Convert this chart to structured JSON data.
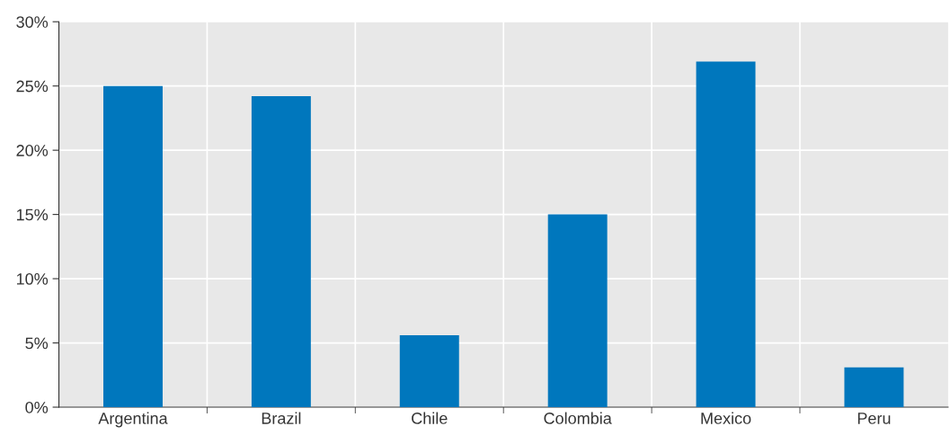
{
  "chart_data": {
    "type": "bar",
    "categories": [
      "Argentina",
      "Brazil",
      "Chile",
      "Colombia",
      "Mexico",
      "Peru"
    ],
    "values": [
      25,
      24.2,
      5.6,
      15,
      26.9,
      3.1
    ],
    "color": "#0077bd",
    "ylim": [
      0,
      30
    ],
    "yticks": [
      {
        "value": 0,
        "label": "0%"
      },
      {
        "value": 5,
        "label": "5%"
      },
      {
        "value": 10,
        "label": "10%"
      },
      {
        "value": 15,
        "label": "15%"
      },
      {
        "value": 20,
        "label": "20%"
      },
      {
        "value": 25,
        "label": "25%"
      },
      {
        "value": 30,
        "label": "30%"
      }
    ],
    "grid": true
  }
}
